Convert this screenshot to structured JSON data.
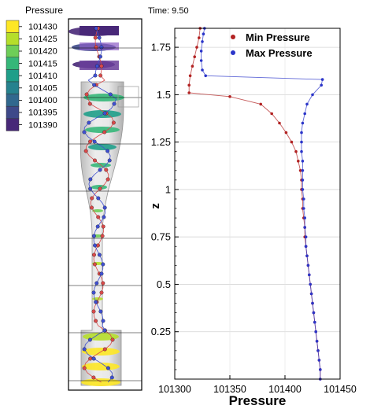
{
  "time_label": "Time: 9.50",
  "legend": {
    "title": "Pressure",
    "levels": [
      {
        "label": "101430",
        "color": "#fde725"
      },
      {
        "label": "101425",
        "color": "#b5de2b"
      },
      {
        "label": "101420",
        "color": "#6ece58"
      },
      {
        "label": "101415",
        "color": "#35b779"
      },
      {
        "label": "101410",
        "color": "#1f9e89"
      },
      {
        "label": "101405",
        "color": "#26828e"
      },
      {
        "label": "101400",
        "color": "#31688e"
      },
      {
        "label": "101395",
        "color": "#3e4989"
      },
      {
        "label": "101390",
        "color": "#482878"
      }
    ]
  },
  "chart_data": {
    "type": "scatter",
    "xlabel": "Pressure",
    "ylabel": "z",
    "xlim": [
      101300,
      101450
    ],
    "ylim": [
      0,
      1.85
    ],
    "xticks": [
      "101300",
      "101350",
      "101400",
      "101450"
    ],
    "yticks": [
      "0.25",
      "0.5",
      "0.75",
      "1",
      "1.25",
      "1.5",
      "1.75"
    ],
    "grid": true,
    "legend_position": "top-right",
    "series": [
      {
        "name": "Min Pressure",
        "color": "#b22222",
        "points": [
          [
            101432,
            0.0
          ],
          [
            101432,
            0.05
          ],
          [
            101431,
            0.1
          ],
          [
            101430,
            0.15
          ],
          [
            101429,
            0.2
          ],
          [
            101428,
            0.25
          ],
          [
            101427,
            0.3
          ],
          [
            101426,
            0.35
          ],
          [
            101425,
            0.4
          ],
          [
            101424,
            0.45
          ],
          [
            101423,
            0.5
          ],
          [
            101422,
            0.55
          ],
          [
            101421,
            0.6
          ],
          [
            101420,
            0.65
          ],
          [
            101419,
            0.7
          ],
          [
            101418,
            0.75
          ],
          [
            101418,
            0.8
          ],
          [
            101417,
            0.85
          ],
          [
            101416,
            0.9
          ],
          [
            101416,
            0.95
          ],
          [
            101415,
            1.0
          ],
          [
            101415,
            1.05
          ],
          [
            101414,
            1.1
          ],
          [
            101412,
            1.15
          ],
          [
            101410,
            1.2
          ],
          [
            101406,
            1.25
          ],
          [
            101401,
            1.3
          ],
          [
            101395,
            1.35
          ],
          [
            101388,
            1.4
          ],
          [
            101378,
            1.45
          ],
          [
            101350,
            1.49
          ],
          [
            101313,
            1.51
          ],
          [
            101313,
            1.55
          ],
          [
            101314,
            1.6
          ],
          [
            101316,
            1.65
          ],
          [
            101318,
            1.7
          ],
          [
            101320,
            1.75
          ],
          [
            101322,
            1.8
          ],
          [
            101323,
            1.85
          ]
        ]
      },
      {
        "name": "Max Pressure",
        "color": "#2b35c9",
        "points": [
          [
            101432,
            0.0
          ],
          [
            101432,
            0.05
          ],
          [
            101431,
            0.1
          ],
          [
            101430,
            0.15
          ],
          [
            101429,
            0.2
          ],
          [
            101428,
            0.25
          ],
          [
            101427,
            0.3
          ],
          [
            101426,
            0.35
          ],
          [
            101425,
            0.4
          ],
          [
            101424,
            0.45
          ],
          [
            101423,
            0.5
          ],
          [
            101422,
            0.55
          ],
          [
            101421,
            0.6
          ],
          [
            101420,
            0.65
          ],
          [
            101419,
            0.7
          ],
          [
            101419,
            0.75
          ],
          [
            101418,
            0.8
          ],
          [
            101418,
            0.85
          ],
          [
            101417,
            0.9
          ],
          [
            101417,
            0.95
          ],
          [
            101416,
            1.0
          ],
          [
            101416,
            1.05
          ],
          [
            101416,
            1.1
          ],
          [
            101416,
            1.15
          ],
          [
            101415,
            1.2
          ],
          [
            101415,
            1.25
          ],
          [
            101415,
            1.3
          ],
          [
            101416,
            1.35
          ],
          [
            101418,
            1.4
          ],
          [
            101420,
            1.45
          ],
          [
            101425,
            1.5
          ],
          [
            101433,
            1.55
          ],
          [
            101434,
            1.58
          ],
          [
            101328,
            1.6
          ],
          [
            101325,
            1.63
          ],
          [
            101324,
            1.68
          ],
          [
            101324,
            1.73
          ],
          [
            101325,
            1.78
          ],
          [
            101326,
            1.82
          ],
          [
            101327,
            1.85
          ]
        ]
      }
    ]
  }
}
